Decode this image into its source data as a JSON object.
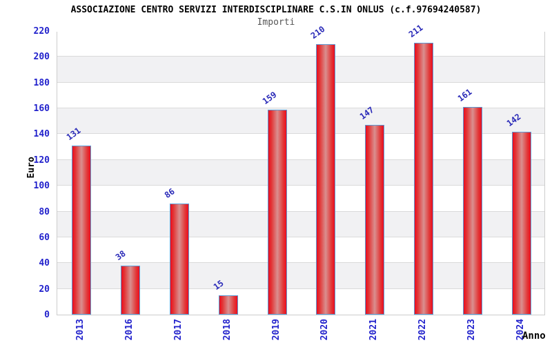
{
  "chart_data": {
    "type": "bar",
    "title": "ASSOCIAZIONE CENTRO SERVIZI INTERDISCIPLINARE C.S.IN ONLUS (c.f.97694240587)",
    "subtitle": "Importi",
    "xlabel": "Anno",
    "ylabel": "Euro",
    "categories": [
      "2013",
      "2016",
      "2017",
      "2018",
      "2019",
      "2020",
      "2021",
      "2022",
      "2023",
      "2024"
    ],
    "values": [
      131,
      38,
      86,
      15,
      159,
      210,
      147,
      211,
      161,
      142
    ],
    "ylim": [
      0,
      220
    ],
    "ytick_step": 20,
    "grid": "horizontal-bands",
    "legend": "none",
    "colors": {
      "bar_edge": "#ea0c1e",
      "bar_center": "#d98f8f",
      "bar_border": "#5b9bd5",
      "tick_label": "#2222cc",
      "value_label": "#2a2ab8",
      "band_alt": "#f1f1f3",
      "plot_border": "#cccccc",
      "title": "#000000",
      "subtitle": "#555555"
    }
  }
}
